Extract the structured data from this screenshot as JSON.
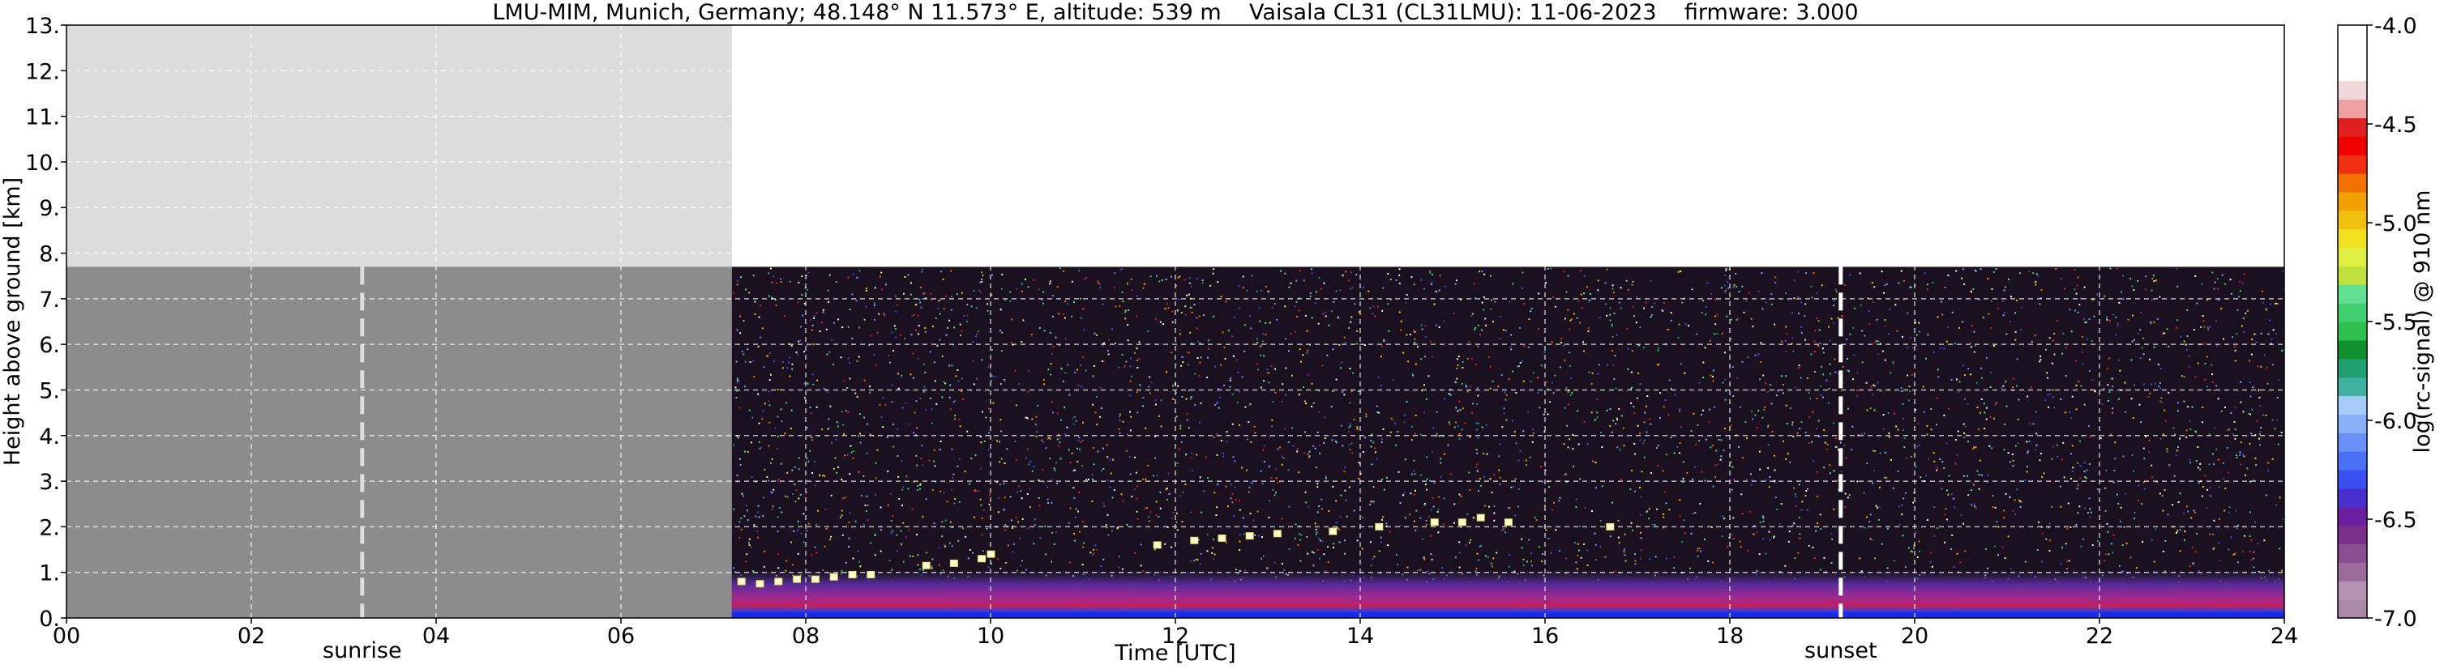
{
  "chart_data": {
    "type": "heatmap",
    "title": "LMU-MIM, Munich, Germany; 48.148° N 11.573° E, altitude: 539 m    Vaisala CL31 (CL31LMU): 11-06-2023    firmware: 3.000",
    "xlabel": "Time [UTC]",
    "ylabel": "Height above ground [km]",
    "xlim": [
      0,
      24
    ],
    "ylim": [
      0,
      13
    ],
    "x_ticks": [
      "00",
      "02",
      "04",
      "06",
      "08",
      "10",
      "12",
      "14",
      "16",
      "18",
      "20",
      "22",
      "24"
    ],
    "y_ticks": [
      "0.",
      "1.",
      "2.",
      "3.",
      "4.",
      "5.",
      "6.",
      "7.",
      "8.",
      "9.",
      "10.",
      "11.",
      "12.",
      "13."
    ],
    "grid": true,
    "data_start_hour": 7.2,
    "max_range_km": 7.7,
    "sunrise_hour": 3.2,
    "sunset_hour": 19.2,
    "sunrise_label": "sunrise",
    "sunset_label": "sunset",
    "colorbar": {
      "label": "log(rc-signal) @ 910 nm",
      "min": -7.0,
      "max": -4.0,
      "tick_values": [
        -7.0,
        -6.5,
        -6.0,
        -5.5,
        -5.0,
        -4.5,
        -4.0
      ],
      "tick_labels": [
        "-7.0",
        "-6.5",
        "-6.0",
        "-5.5",
        "-5.0",
        "-4.5",
        "-4.0"
      ],
      "colors": [
        "#a88aa6",
        "#b393b1",
        "#9b6b9b",
        "#8a4f91",
        "#7a2f8a",
        "#6a1fa0",
        "#4a2fd0",
        "#3a4ff0",
        "#4a70f5",
        "#6a90f8",
        "#8ab0fa",
        "#a8ccfa",
        "#40b0a0",
        "#20a070",
        "#10902a",
        "#30c050",
        "#40d070",
        "#60e090",
        "#c0e040",
        "#e0f040",
        "#f0e020",
        "#f0c010",
        "#f0a000",
        "#f07000",
        "#f03010",
        "#f00000",
        "#e02020",
        "#f0a0a0",
        "#f0d8d8",
        "#ffffff",
        "#ffffff",
        "#ffffff"
      ]
    },
    "cloud_base_hits": [
      {
        "t": 7.3,
        "h": 0.8
      },
      {
        "t": 7.5,
        "h": 0.75
      },
      {
        "t": 7.7,
        "h": 0.8
      },
      {
        "t": 7.9,
        "h": 0.85
      },
      {
        "t": 8.1,
        "h": 0.85
      },
      {
        "t": 8.3,
        "h": 0.9
      },
      {
        "t": 8.5,
        "h": 0.95
      },
      {
        "t": 8.7,
        "h": 0.95
      },
      {
        "t": 9.3,
        "h": 1.15
      },
      {
        "t": 9.6,
        "h": 1.2
      },
      {
        "t": 9.9,
        "h": 1.3
      },
      {
        "t": 10.0,
        "h": 1.4
      },
      {
        "t": 11.8,
        "h": 1.6
      },
      {
        "t": 12.2,
        "h": 1.7
      },
      {
        "t": 12.5,
        "h": 1.75
      },
      {
        "t": 12.8,
        "h": 1.8
      },
      {
        "t": 13.1,
        "h": 1.85
      },
      {
        "t": 13.7,
        "h": 1.9
      },
      {
        "t": 14.2,
        "h": 2.0
      },
      {
        "t": 14.8,
        "h": 2.1
      },
      {
        "t": 15.1,
        "h": 2.1
      },
      {
        "t": 15.3,
        "h": 2.2
      },
      {
        "t": 15.6,
        "h": 2.1
      },
      {
        "t": 16.7,
        "h": 2.0
      }
    ]
  }
}
